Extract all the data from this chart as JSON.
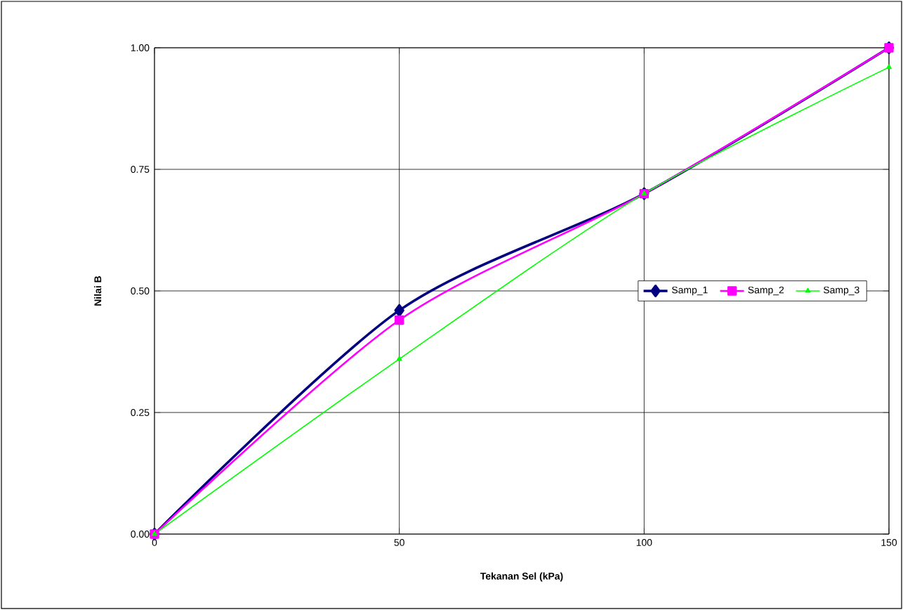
{
  "chart_data": {
    "type": "line",
    "xlabel": "Tekanan Sel (kPa)",
    "ylabel": "Nilai B",
    "x": [
      0,
      50,
      100,
      150
    ],
    "series": [
      {
        "name": "Samp_1",
        "color": "#000080",
        "marker": "diamond",
        "values": [
          0,
          0.46,
          0.7,
          1.0
        ]
      },
      {
        "name": "Samp_2",
        "color": "#ff00ff",
        "marker": "square",
        "values": [
          0,
          0.44,
          0.7,
          1.0
        ]
      },
      {
        "name": "Samp_3",
        "color": "#00ff00",
        "marker": "triangle",
        "values": [
          0,
          0.36,
          0.7,
          0.96
        ]
      }
    ],
    "xlim": [
      0,
      150
    ],
    "ylim": [
      0,
      1
    ],
    "xticks": [
      0,
      50,
      100,
      150
    ],
    "yticks": [
      {
        "value": 0,
        "label": "0.00"
      },
      {
        "value": 0.25,
        "label": "0.25"
      },
      {
        "value": 0.5,
        "label": "0.50"
      },
      {
        "value": 0.75,
        "label": "0.75"
      },
      {
        "value": 1,
        "label": "1.00"
      }
    ],
    "grid": true,
    "legend": "right",
    "line_style": "solid"
  }
}
